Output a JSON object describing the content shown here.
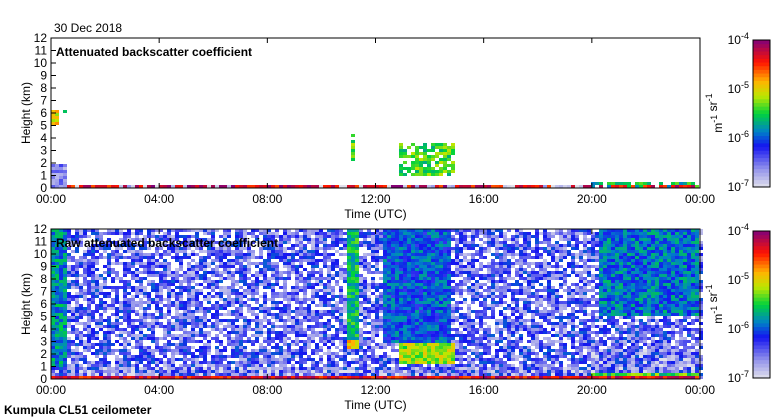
{
  "date_label": "30 Dec 2018",
  "footer_label": "Kumpula CL51 ceilometer",
  "chart_data": [
    {
      "type": "heatmap",
      "title": "Attenuated backscatter coefficient",
      "xlabel": "Time (UTC)",
      "ylabel": "Height (km)",
      "xlim": [
        0,
        24
      ],
      "ylim": [
        0,
        12
      ],
      "xticks": [
        "00:00",
        "04:00",
        "08:00",
        "12:00",
        "16:00",
        "20:00",
        "00:00"
      ],
      "yticks": [
        "0",
        "1",
        "2",
        "3",
        "4",
        "5",
        "6",
        "7",
        "8",
        "9",
        "10",
        "11",
        "12"
      ],
      "colorbar": {
        "label": "m-1 sr-1",
        "scale": "log",
        "range": [
          1e-07,
          0.0001
        ],
        "ticks": [
          "10-7",
          "10-6",
          "10-5",
          "10-4"
        ]
      },
      "features": [
        {
          "desc": "surface layer",
          "t": [
            0.6,
            24
          ],
          "h": [
            0,
            0.12
          ],
          "log10": -4.3
        },
        {
          "desc": "near-surface haze",
          "t": [
            0.6,
            20
          ],
          "h": [
            0.12,
            0.35
          ],
          "log10": -6.9
        },
        {
          "desc": "low haze early",
          "t": [
            0,
            0.65
          ],
          "h": [
            0,
            2
          ],
          "log10": -6.6
        },
        {
          "desc": "high cloud bits",
          "t": [
            0.05,
            0.25
          ],
          "h": [
            5,
            6.3
          ],
          "log10": -5.0
        },
        {
          "desc": "high cloud bits",
          "t": [
            0.45,
            0.6
          ],
          "h": [
            5.8,
            6.2
          ],
          "log10": -5.6
        },
        {
          "desc": "cloud",
          "t": [
            11.05,
            11.3
          ],
          "h": [
            2.2,
            4.4
          ],
          "log10": -5.3
        },
        {
          "desc": "cloud",
          "t": [
            12.8,
            14.9
          ],
          "h": [
            1,
            3.6
          ],
          "log10": -5.4
        },
        {
          "desc": "evening surface band",
          "t": [
            20,
            24
          ],
          "h": [
            0.12,
            0.45
          ],
          "log10": -5.6
        }
      ]
    },
    {
      "type": "heatmap",
      "title": "Raw attenuated backscatter coefficient",
      "xlabel": "Time (UTC)",
      "ylabel": "Height (km)",
      "xlim": [
        0,
        24
      ],
      "ylim": [
        0,
        12
      ],
      "xticks": [
        "00:00",
        "04:00",
        "08:00",
        "12:00",
        "16:00",
        "20:00",
        "00:00"
      ],
      "yticks": [
        "0",
        "1",
        "2",
        "3",
        "4",
        "5",
        "6",
        "7",
        "8",
        "9",
        "10",
        "11",
        "12"
      ],
      "colorbar": {
        "label": "m-1 sr-1",
        "scale": "log",
        "range": [
          1e-07,
          0.0001
        ],
        "ticks": [
          "10-7",
          "10-6",
          "10-5",
          "10-4"
        ]
      },
      "background_log10": -6.4,
      "features": [
        {
          "desc": "surface layer",
          "t": [
            0,
            24
          ],
          "h": [
            0,
            0.12
          ],
          "log10": -4.3
        },
        {
          "desc": "near-surface grey",
          "t": [
            0,
            24
          ],
          "h": [
            0.12,
            1.0
          ],
          "log10": -7.0
        },
        {
          "desc": "early column",
          "t": [
            0,
            0.65
          ],
          "h": [
            1,
            12
          ],
          "log10": -5.8
        },
        {
          "desc": "column",
          "t": [
            11.0,
            11.4
          ],
          "h": [
            2.5,
            12
          ],
          "log10": -5.6
        },
        {
          "desc": "cloud base",
          "t": [
            11.0,
            11.4
          ],
          "h": [
            2.3,
            3.2
          ],
          "log10": -5.0
        },
        {
          "desc": "columns",
          "t": [
            12.3,
            14.8
          ],
          "h": [
            3,
            12
          ],
          "log10": -6.0
        },
        {
          "desc": "cloud",
          "t": [
            12.8,
            14.9
          ],
          "h": [
            1.3,
            2.8
          ],
          "log10": -5.2
        },
        {
          "desc": "evening upper",
          "t": [
            20.2,
            24
          ],
          "h": [
            5,
            12
          ],
          "log10": -5.9
        },
        {
          "desc": "evening grey",
          "t": [
            20,
            24
          ],
          "h": [
            0.3,
            2.5
          ],
          "log10": -7.0
        },
        {
          "desc": "evening surface band",
          "t": [
            20,
            24
          ],
          "h": [
            0.12,
            0.4
          ],
          "log10": -5.4
        }
      ]
    }
  ]
}
